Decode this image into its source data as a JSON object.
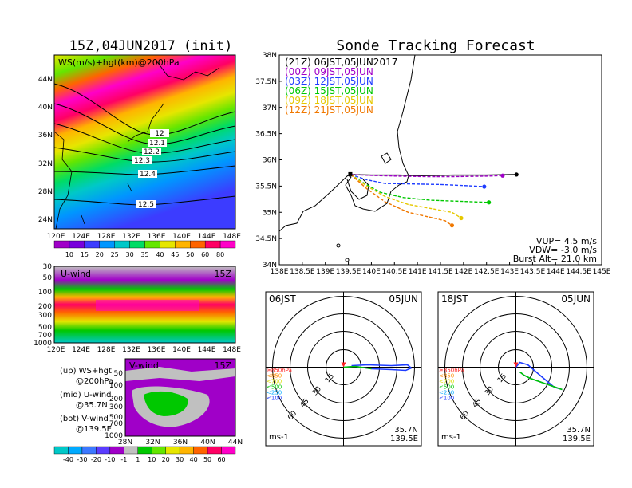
{
  "titles": {
    "left": "15Z,04JUN2017 (init)",
    "right": "Sonde Tracking Forecast"
  },
  "ws_map": {
    "label": "WS(m/s)+hgt(km)@200hPa",
    "lat_ticks": [
      "24N",
      "28N",
      "32N",
      "36N",
      "40N",
      "44N"
    ],
    "lon_ticks": [
      "120E",
      "124E",
      "128E",
      "132E",
      "136E",
      "140E",
      "144E",
      "148E"
    ],
    "contour_labels": [
      "12",
      "12.1",
      "12.2",
      "12.3",
      "12.4",
      "12.5"
    ],
    "colorbar_ticks": [
      "10",
      "15",
      "20",
      "25",
      "30",
      "35",
      "40",
      "45",
      "50",
      "60",
      "80"
    ],
    "colorbar_colors": [
      "#a000c8",
      "#7800dc",
      "#3c3cff",
      "#0096ff",
      "#00c8c8",
      "#00dc64",
      "#64e600",
      "#e6e600",
      "#ffb400",
      "#ff6400",
      "#ff0064",
      "#ff00c8"
    ]
  },
  "u_panel": {
    "label": "U-wind",
    "time": "15Z",
    "y_ticks": [
      "30",
      "50",
      "100",
      "200",
      "300",
      "500",
      "700",
      "1000"
    ],
    "x_ticks": [
      "120E",
      "124E",
      "128E",
      "132E",
      "136E",
      "140E",
      "144E",
      "148E"
    ]
  },
  "v_panel": {
    "label": "V-wind",
    "time": "15Z",
    "y_ticks": [
      "50",
      "100",
      "200",
      "300",
      "500",
      "700",
      "1000"
    ],
    "x_ticks": [
      "28N",
      "32N",
      "36N",
      "40N",
      "44N"
    ]
  },
  "legend_notes": [
    {
      "line1": "(up) WS+hgt",
      "line2": "@200hPa"
    },
    {
      "line1": "(mid) U-wind",
      "line2": "@35.7N"
    },
    {
      "line1": "(bot) V-wind",
      "line2": "@139.5E"
    }
  ],
  "bottom_colorbar": {
    "ticks": [
      "-40",
      "-30",
      "-20",
      "-10",
      "-1",
      "1",
      "10",
      "20",
      "30",
      "40",
      "50",
      "60"
    ],
    "colors": [
      "#00c8c8",
      "#00aaff",
      "#3c78ff",
      "#5a3cff",
      "#a000c8",
      "#c0c0c0",
      "#00c800",
      "#64e600",
      "#e6e600",
      "#ffb400",
      "#ff6400",
      "#ff0064",
      "#ff00c8"
    ]
  },
  "track_panel": {
    "lat_ticks": [
      "34N",
      "34.5N",
      "35N",
      "35.5N",
      "36N",
      "36.5N",
      "37N",
      "37.5N",
      "38N"
    ],
    "lon_ticks": [
      "138E",
      "138.5E",
      "139E",
      "139.5E",
      "140E",
      "140.5E",
      "141E",
      "141.5E",
      "142E",
      "142.5E",
      "143E",
      "143.5E",
      "144E",
      "144.5E",
      "145E"
    ],
    "legend": [
      {
        "text": "(21Z) 06JST,05JUN2017",
        "color": "#000000"
      },
      {
        "text": "(00Z) 09JST,05JUN",
        "color": "#a000c8"
      },
      {
        "text": "(03Z) 12JST,05JUN",
        "color": "#1e3cff"
      },
      {
        "text": "(06Z) 15JST,05JUN",
        "color": "#00c800"
      },
      {
        "text": "(09Z) 18JST,05JUN",
        "color": "#e6c800"
      },
      {
        "text": "(12Z) 21JST,05JUN",
        "color": "#f07800"
      }
    ],
    "params": [
      "VUP= 4.5 m/s",
      "VDW= -3.0 m/s",
      "Burst Alt= 21.0 km"
    ]
  },
  "hodographs": [
    {
      "left": "06JST",
      "right": "05JUN",
      "coord1": "35.7N",
      "coord2": "139.5E",
      "unit": "ms-1",
      "levels": [
        {
          "t": "≥850hPa",
          "c": "#ff2020"
        },
        {
          "t": "<850",
          "c": "#ff8c00"
        },
        {
          "t": "<700",
          "c": "#dcdc00"
        },
        {
          "t": "<500",
          "c": "#00c800"
        },
        {
          "t": "<250",
          "c": "#00aaff"
        },
        {
          "t": "<100",
          "c": "#1e3cff"
        }
      ],
      "rings": [
        "15",
        "30",
        "45",
        "60"
      ]
    },
    {
      "left": "18JST",
      "right": "05JUN",
      "coord1": "35.7N",
      "coord2": "139.5E",
      "unit": "ms-1",
      "levels": [
        {
          "t": "≥850hPa",
          "c": "#ff2020"
        },
        {
          "t": "<850",
          "c": "#ff8c00"
        },
        {
          "t": "<700",
          "c": "#dcdc00"
        },
        {
          "t": "<500",
          "c": "#00c800"
        },
        {
          "t": "<250",
          "c": "#00aaff"
        },
        {
          "t": "<100",
          "c": "#1e3cff"
        }
      ],
      "rings": [
        "15",
        "30",
        "45",
        "60"
      ]
    }
  ],
  "chart_data": {
    "type": "line",
    "title": "Sonde Tracking Forecast",
    "xlim": [
      138,
      145
    ],
    "ylim": [
      34,
      38
    ],
    "launch": {
      "lon": 139.55,
      "lat": 35.72
    },
    "series": [
      {
        "name": "(21Z) 06JST,05JUN2017",
        "color": "#000000",
        "points": [
          [
            139.55,
            35.72
          ],
          [
            140.0,
            35.71
          ],
          [
            140.6,
            35.71
          ],
          [
            141.1,
            35.7
          ],
          [
            141.8,
            35.71
          ],
          [
            142.5,
            35.71
          ],
          [
            143.15,
            35.72
          ]
        ]
      },
      {
        "name": "(00Z) 09JST,05JUN",
        "color": "#a000c8",
        "points": [
          [
            139.55,
            35.72
          ],
          [
            140.1,
            35.7
          ],
          [
            140.6,
            35.69
          ],
          [
            141.2,
            35.68
          ],
          [
            141.8,
            35.68
          ],
          [
            142.5,
            35.69
          ],
          [
            142.85,
            35.7
          ]
        ]
      },
      {
        "name": "(03Z) 12JST,05JUN",
        "color": "#1e3cff",
        "points": [
          [
            139.55,
            35.72
          ],
          [
            139.9,
            35.62
          ],
          [
            140.3,
            35.55
          ],
          [
            140.9,
            35.54
          ],
          [
            141.5,
            35.53
          ],
          [
            142.0,
            35.51
          ],
          [
            142.45,
            35.49
          ]
        ]
      },
      {
        "name": "(06Z) 15JST,05JUN",
        "color": "#00c800",
        "points": [
          [
            139.55,
            35.72
          ],
          [
            139.85,
            35.55
          ],
          [
            140.2,
            35.38
          ],
          [
            140.7,
            35.28
          ],
          [
            141.3,
            35.23
          ],
          [
            141.9,
            35.21
          ],
          [
            142.55,
            35.19
          ]
        ]
      },
      {
        "name": "(09Z) 18JST,05JUN",
        "color": "#e6c800",
        "points": [
          [
            139.55,
            35.72
          ],
          [
            139.9,
            35.5
          ],
          [
            140.3,
            35.3
          ],
          [
            140.8,
            35.15
          ],
          [
            141.3,
            35.07
          ],
          [
            141.75,
            35.0
          ],
          [
            141.95,
            34.89
          ]
        ]
      },
      {
        "name": "(12Z) 21JST,05JUN",
        "color": "#f07800",
        "points": [
          [
            139.55,
            35.72
          ],
          [
            139.9,
            35.45
          ],
          [
            140.3,
            35.2
          ],
          [
            140.8,
            35.0
          ],
          [
            141.3,
            34.9
          ],
          [
            141.6,
            34.84
          ],
          [
            141.75,
            34.75
          ]
        ]
      }
    ]
  }
}
